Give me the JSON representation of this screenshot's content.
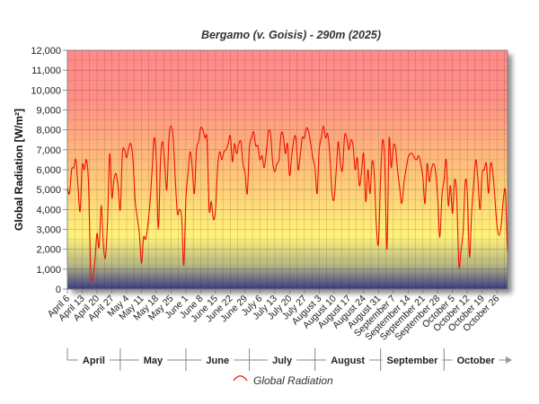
{
  "chart_data": {
    "type": "line",
    "title": "Bergamo (v. Goisis) - 290m (2025)",
    "ylabel": "Global Radiation [W/m²]",
    "xlabel": "",
    "ylim": [
      0,
      12000
    ],
    "yticks": [
      "0",
      "1,000",
      "2,000",
      "3,000",
      "4,000",
      "5,000",
      "6,000",
      "7,000",
      "8,000",
      "9,000",
      "10,000",
      "11,000",
      "12,000"
    ],
    "xlim": [
      "2025-04-06",
      "2025-10-31"
    ],
    "xticks": [
      {
        "date": "2025-04-06",
        "label": "April 6"
      },
      {
        "date": "2025-04-13",
        "label": "April 13"
      },
      {
        "date": "2025-04-20",
        "label": "April 20"
      },
      {
        "date": "2025-04-27",
        "label": "April 27"
      },
      {
        "date": "2025-05-04",
        "label": "May 4"
      },
      {
        "date": "2025-05-11",
        "label": "May 11"
      },
      {
        "date": "2025-05-18",
        "label": "May 18"
      },
      {
        "date": "2025-05-25",
        "label": "May 25"
      },
      {
        "date": "2025-06-01",
        "label": "June 1"
      },
      {
        "date": "2025-06-08",
        "label": "June 8"
      },
      {
        "date": "2025-06-15",
        "label": "June 15"
      },
      {
        "date": "2025-06-22",
        "label": "June 22"
      },
      {
        "date": "2025-06-29",
        "label": "June 29"
      },
      {
        "date": "2025-07-06",
        "label": "July 6"
      },
      {
        "date": "2025-07-13",
        "label": "July 13"
      },
      {
        "date": "2025-07-20",
        "label": "July 20"
      },
      {
        "date": "2025-07-27",
        "label": "July 27"
      },
      {
        "date": "2025-08-03",
        "label": "August 3"
      },
      {
        "date": "2025-08-10",
        "label": "August 10"
      },
      {
        "date": "2025-08-17",
        "label": "August 17"
      },
      {
        "date": "2025-08-24",
        "label": "August 24"
      },
      {
        "date": "2025-08-31",
        "label": "August 31"
      },
      {
        "date": "2025-09-07",
        "label": "September 7"
      },
      {
        "date": "2025-09-14",
        "label": "September 14"
      },
      {
        "date": "2025-09-21",
        "label": "September 21"
      },
      {
        "date": "2025-09-28",
        "label": "September 28"
      },
      {
        "date": "2025-10-05",
        "label": "October 5"
      },
      {
        "date": "2025-10-12",
        "label": "October 12"
      },
      {
        "date": "2025-10-19",
        "label": "October 19"
      },
      {
        "date": "2025-10-26",
        "label": "October 26"
      }
    ],
    "months": [
      {
        "label": "April",
        "start": "2025-04-06",
        "end": "2025-05-01"
      },
      {
        "label": "May",
        "start": "2025-05-01",
        "end": "2025-06-01"
      },
      {
        "label": "June",
        "start": "2025-06-01",
        "end": "2025-07-01"
      },
      {
        "label": "July",
        "start": "2025-07-01",
        "end": "2025-08-01"
      },
      {
        "label": "August",
        "start": "2025-08-01",
        "end": "2025-09-01"
      },
      {
        "label": "September",
        "start": "2025-09-01",
        "end": "2025-10-01"
      },
      {
        "label": "October",
        "start": "2025-10-01",
        "end": "2025-10-31"
      }
    ],
    "grid": true,
    "legend": "bottom",
    "series": [
      {
        "name": "Global Radiation",
        "color": "#ee1100",
        "x_start": "2025-04-06",
        "x_step_days": 1,
        "values": [
          5100,
          4800,
          6000,
          6100,
          6500,
          5200,
          3900,
          6200,
          6000,
          6500,
          5300,
          1000,
          500,
          1400,
          2800,
          2100,
          4200,
          2200,
          1600,
          3500,
          6800,
          4600,
          5500,
          5800,
          5100,
          4000,
          6800,
          7000,
          6600,
          7100,
          7300,
          6500,
          4500,
          3600,
          2800,
          1300,
          2600,
          2500,
          3200,
          4300,
          5900,
          7600,
          6500,
          3000,
          6500,
          7400,
          6300,
          5000,
          7600,
          8200,
          7600,
          5500,
          3800,
          4000,
          3600,
          1200,
          4500,
          5800,
          6900,
          6100,
          4800,
          7000,
          7400,
          8100,
          8000,
          7600,
          7500,
          4000,
          4400,
          3500,
          4000,
          6100,
          6900,
          6500,
          6900,
          7000,
          7300,
          7700,
          6400,
          7300,
          6800,
          7300,
          7400,
          6300,
          5800,
          4800,
          7100,
          7600,
          7900,
          7200,
          7200,
          6500,
          6700,
          6100,
          6900,
          7900,
          7800,
          6400,
          5900,
          6300,
          6500,
          7800,
          7700,
          6800,
          7300,
          5700,
          6700,
          7500,
          7600,
          6000,
          6700,
          7600,
          7600,
          8100,
          7900,
          7300,
          6600,
          6100,
          4800,
          7000,
          7600,
          8200,
          7600,
          7800,
          6800,
          4900,
          4500,
          5900,
          7400,
          6300,
          6000,
          7700,
          7600,
          7000,
          7500,
          7200,
          6000,
          6600,
          5200,
          5900,
          6800,
          4400,
          6000,
          4800,
          6400,
          5800,
          3200,
          2300,
          5600,
          7500,
          6300,
          2000,
          7500,
          6100,
          7200,
          7100,
          6000,
          5100,
          4300,
          5300,
          6000,
          6600,
          6800,
          6800,
          6600,
          6500,
          6700,
          6300,
          5600,
          4300,
          6300,
          5400,
          6000,
          6300,
          5900,
          4600,
          2600,
          4700,
          5500,
          6500,
          4200,
          5200,
          3800,
          5500,
          4600,
          1200,
          1900,
          2900,
          5400,
          4800,
          1600,
          3800,
          5300,
          6500,
          5500,
          4000,
          5800,
          6000,
          6300,
          4800,
          6300,
          5900,
          4600,
          3200,
          2700,
          3200,
          4500,
          4900,
          1900,
          4100,
          4800,
          5000,
          5200,
          5100
        ]
      }
    ]
  },
  "colors": {
    "background_top": "#ff8a8a",
    "background_middle": "#fff27a",
    "background_bottom": "#3a3a84",
    "line": "#ee1100"
  }
}
